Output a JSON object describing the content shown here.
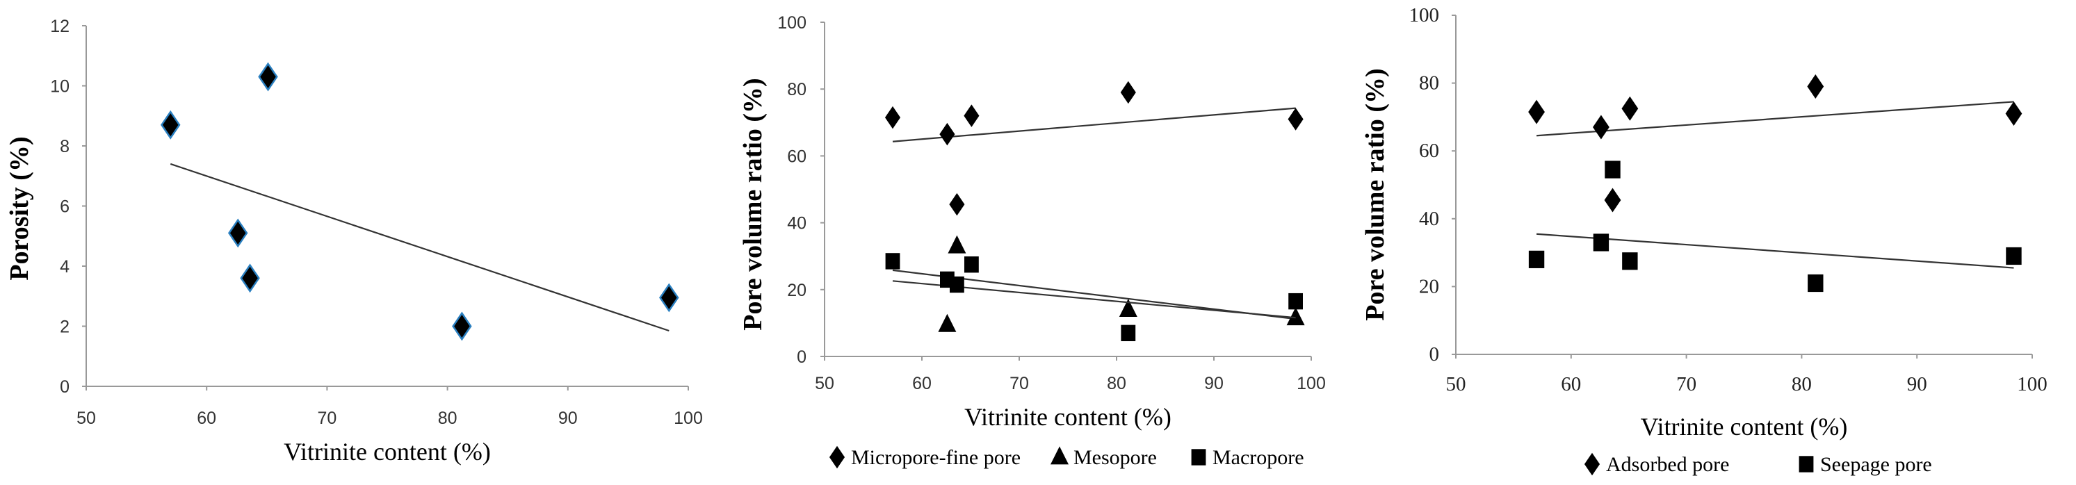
{
  "chart_data": [
    {
      "type": "scatter",
      "title": "",
      "xlabel": "Vitrinite content (%)",
      "ylabel": "Porosity (%)",
      "xlim": [
        50,
        100
      ],
      "ylim": [
        0,
        12
      ],
      "xticks": [
        "50",
        "60",
        "70",
        "80",
        "90",
        "100"
      ],
      "yticks": [
        "0",
        "2",
        "4",
        "6",
        "8",
        "10",
        "12"
      ],
      "grid": false,
      "legend": null,
      "series": [
        {
          "name": "Porosity",
          "marker": "diamond",
          "color": "#000000",
          "edge": "#2a7fc0",
          "x": [
            57.0,
            62.6,
            63.6,
            65.1,
            81.2,
            98.4
          ],
          "y": [
            8.7,
            5.1,
            3.6,
            10.3,
            2.0,
            2.95
          ],
          "trend": [
            [
              57.0,
              7.4
            ],
            [
              98.4,
              1.85
            ]
          ]
        }
      ]
    },
    {
      "type": "scatter",
      "title": "",
      "xlabel": "Vitrinite content (%)",
      "ylabel": "Pore volume ratio (%)",
      "xlim": [
        50,
        100
      ],
      "ylim": [
        0,
        100
      ],
      "xticks": [
        "50",
        "60",
        "70",
        "80",
        "90",
        "100"
      ],
      "yticks": [
        "0",
        "20",
        "40",
        "60",
        "80",
        "100"
      ],
      "grid": false,
      "legend": "bottom",
      "series": [
        {
          "name": "Micropore-fine pore",
          "marker": "diamond",
          "color": "#000000",
          "x": [
            57.0,
            62.6,
            63.6,
            65.1,
            81.2,
            98.4
          ],
          "y": [
            71.5,
            66.5,
            45.5,
            72.0,
            79.0,
            71.0
          ],
          "trend": [
            [
              57.0,
              64.3
            ],
            [
              98.4,
              74.3
            ]
          ]
        },
        {
          "name": "Mesopore",
          "marker": "triangle",
          "color": "#000000",
          "x": [
            62.6,
            63.6,
            81.2,
            98.4
          ],
          "y": [
            9.5,
            33.0,
            14.0,
            11.5
          ],
          "trend": [
            [
              57.0,
              25.8
            ],
            [
              98.4,
              11.2
            ]
          ]
        },
        {
          "name": "Macropore",
          "marker": "square",
          "color": "#000000",
          "x": [
            57.0,
            62.6,
            63.6,
            65.1,
            81.2,
            98.4
          ],
          "y": [
            28.5,
            23.0,
            21.5,
            27.5,
            7.0,
            16.5
          ],
          "trend": [
            [
              57.0,
              22.6
            ],
            [
              98.4,
              11.6
            ]
          ]
        }
      ]
    },
    {
      "type": "scatter",
      "title": "",
      "xlabel": "Vitrinite content (%)",
      "ylabel": "Pore volume ratio (%)",
      "xlim": [
        50,
        100
      ],
      "ylim": [
        0,
        100
      ],
      "xticks": [
        "50",
        "60",
        "70",
        "80",
        "90",
        "100"
      ],
      "yticks": [
        "0",
        "20",
        "40",
        "60",
        "80",
        "100"
      ],
      "grid": false,
      "legend": "bottom",
      "series": [
        {
          "name": "Adsorbed pore",
          "marker": "diamond",
          "color": "#000000",
          "x": [
            57.0,
            62.6,
            63.6,
            65.1,
            81.2,
            98.4
          ],
          "y": [
            71.5,
            67.0,
            45.5,
            72.5,
            79.0,
            71.0
          ],
          "trend": [
            [
              57.0,
              64.5
            ],
            [
              98.4,
              74.5
            ]
          ]
        },
        {
          "name": "Seepage pore",
          "marker": "square",
          "color": "#000000",
          "x": [
            57.0,
            62.6,
            63.6,
            65.1,
            81.2,
            98.4
          ],
          "y": [
            28.0,
            33.0,
            54.5,
            27.5,
            21.0,
            29.0
          ],
          "trend": [
            [
              57.0,
              35.5
            ],
            [
              98.4,
              25.5
            ]
          ]
        }
      ]
    }
  ]
}
